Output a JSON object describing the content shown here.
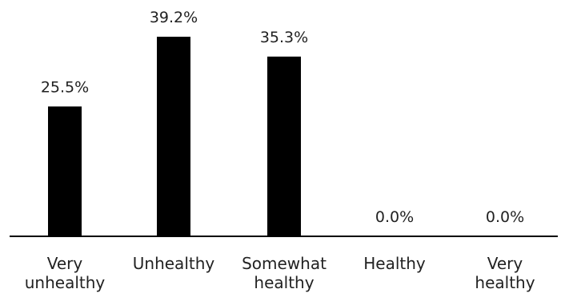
{
  "chart_data": {
    "type": "bar",
    "categories": [
      [
        "Very",
        "unhealthy"
      ],
      [
        "Unhealthy"
      ],
      [
        "Somewhat",
        "healthy"
      ],
      [
        "Healthy"
      ],
      [
        "Very",
        "healthy"
      ]
    ],
    "values": [
      25.5,
      39.2,
      35.3,
      0.0,
      0.0
    ],
    "value_labels": [
      "25.5%",
      "39.2%",
      "35.3%",
      "0.0%",
      "0.0%"
    ],
    "title": "",
    "xlabel": "",
    "ylabel": "",
    "ylim": [
      0,
      39.2
    ],
    "grid": false,
    "bar_color": "#000000",
    "axis_color": "#000000",
    "text_color": "#222222"
  }
}
